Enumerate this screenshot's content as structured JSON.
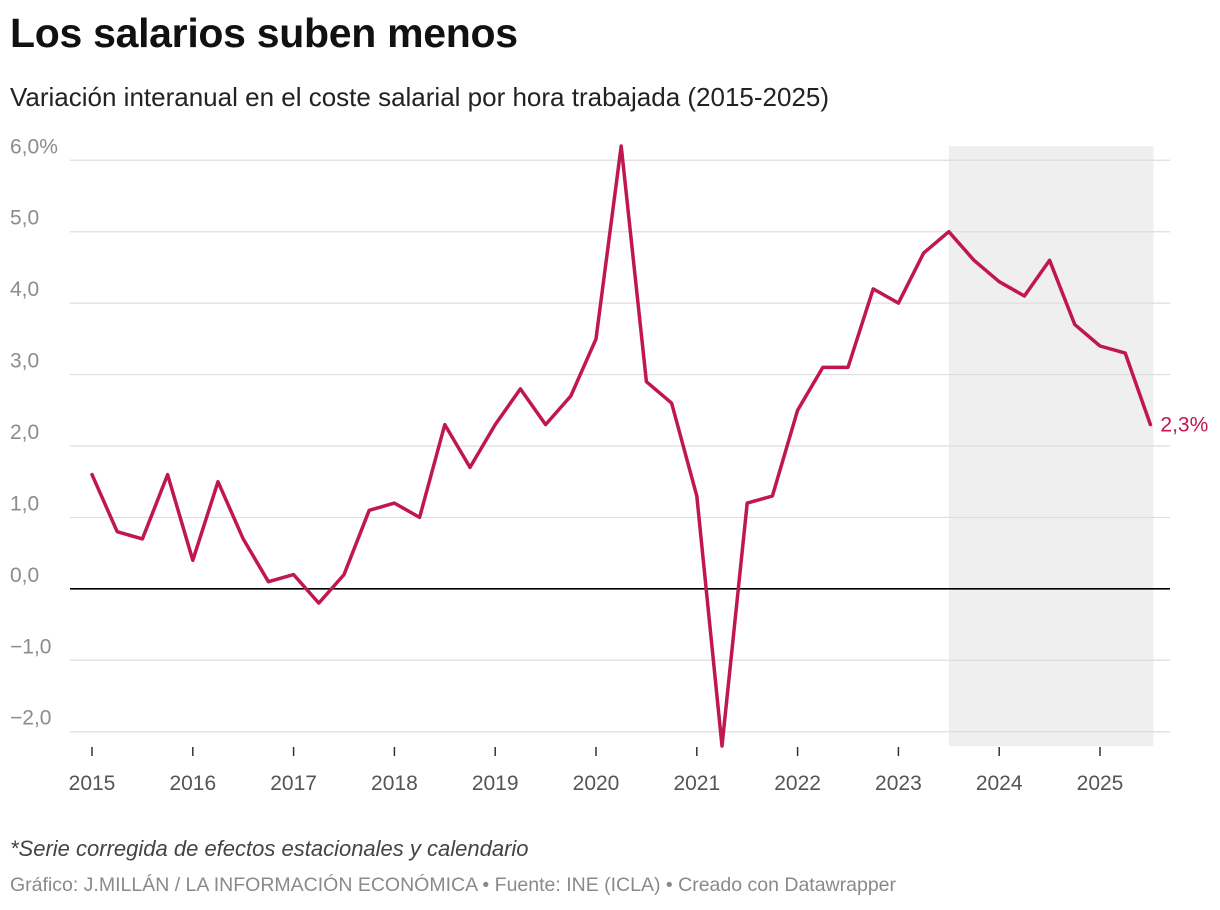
{
  "title": "Los salarios suben menos",
  "subtitle": "Variación interanual en el coste salarial por hora trabajada (2015-2025)",
  "note": "*Serie corregida de efectos estacionales y calendario",
  "source": "Gráfico: J.MILLÁN / LA INFORMACIÓN ECONÓMICA • Fuente: INE (ICLA) • Creado con Datawrapper",
  "colors": {
    "line": "#c0174f",
    "highlight": "#efefef",
    "grid": "#dedede",
    "zero": "#000000"
  },
  "chart_data": {
    "type": "line",
    "title": "Los salarios suben menos",
    "subtitle": "Variación interanual en el coste salarial por hora trabajada (2015-2025)",
    "xlabel": "",
    "ylabel": "",
    "x_ticks": [
      "2015",
      "2016",
      "2017",
      "2018",
      "2019",
      "2020",
      "2021",
      "2022",
      "2023",
      "2024",
      "2025"
    ],
    "y_ticks": [
      {
        "value": 6,
        "label": "6,0%"
      },
      {
        "value": 5,
        "label": "5,0"
      },
      {
        "value": 4,
        "label": "4,0"
      },
      {
        "value": 3,
        "label": "3,0"
      },
      {
        "value": 2,
        "label": "2,0"
      },
      {
        "value": 1,
        "label": "1,0"
      },
      {
        "value": 0,
        "label": "0,0"
      },
      {
        "value": -1,
        "label": "−1,0"
      },
      {
        "value": -2,
        "label": "−2,0"
      }
    ],
    "ylim": [
      -2.2,
      6.2
    ],
    "xlim": [
      "2015-Q1",
      "2025-Q3"
    ],
    "grid": true,
    "highlight_range": [
      "2023-Q3",
      "2025-Q3"
    ],
    "end_label": "2,3%",
    "series": [
      {
        "values": [
          {
            "x": "2015-Q1",
            "y": 1.6
          },
          {
            "x": "2015-Q2",
            "y": 0.8
          },
          {
            "x": "2015-Q3",
            "y": 0.7
          },
          {
            "x": "2015-Q4",
            "y": 1.6
          },
          {
            "x": "2016-Q1",
            "y": 0.4
          },
          {
            "x": "2016-Q2",
            "y": 1.5
          },
          {
            "x": "2016-Q3",
            "y": 0.7
          },
          {
            "x": "2016-Q4",
            "y": 0.1
          },
          {
            "x": "2017-Q1",
            "y": 0.2
          },
          {
            "x": "2017-Q2",
            "y": -0.2
          },
          {
            "x": "2017-Q3",
            "y": 0.2
          },
          {
            "x": "2017-Q4",
            "y": 1.1
          },
          {
            "x": "2018-Q1",
            "y": 1.2
          },
          {
            "x": "2018-Q2",
            "y": 1.0
          },
          {
            "x": "2018-Q3",
            "y": 2.3
          },
          {
            "x": "2018-Q4",
            "y": 1.7
          },
          {
            "x": "2019-Q1",
            "y": 2.3
          },
          {
            "x": "2019-Q2",
            "y": 2.8
          },
          {
            "x": "2019-Q3",
            "y": 2.3
          },
          {
            "x": "2019-Q4",
            "y": 2.7
          },
          {
            "x": "2020-Q1",
            "y": 3.5
          },
          {
            "x": "2020-Q2",
            "y": 6.2
          },
          {
            "x": "2020-Q3",
            "y": 2.9
          },
          {
            "x": "2020-Q4",
            "y": 2.6
          },
          {
            "x": "2021-Q1",
            "y": 1.3
          },
          {
            "x": "2021-Q2",
            "y": -2.2
          },
          {
            "x": "2021-Q3",
            "y": 1.2
          },
          {
            "x": "2021-Q4",
            "y": 1.3
          },
          {
            "x": "2022-Q1",
            "y": 2.5
          },
          {
            "x": "2022-Q2",
            "y": 3.1
          },
          {
            "x": "2022-Q3",
            "y": 3.1
          },
          {
            "x": "2022-Q4",
            "y": 4.2
          },
          {
            "x": "2023-Q1",
            "y": 4.0
          },
          {
            "x": "2023-Q2",
            "y": 4.7
          },
          {
            "x": "2023-Q3",
            "y": 5.0
          },
          {
            "x": "2023-Q4",
            "y": 4.6
          },
          {
            "x": "2024-Q1",
            "y": 4.3
          },
          {
            "x": "2024-Q2",
            "y": 4.1
          },
          {
            "x": "2024-Q3",
            "y": 4.6
          },
          {
            "x": "2024-Q4",
            "y": 3.7
          },
          {
            "x": "2025-Q1",
            "y": 3.4
          },
          {
            "x": "2025-Q2",
            "y": 3.3
          },
          {
            "x": "2025-Q3",
            "y": 2.3
          }
        ]
      }
    ]
  }
}
